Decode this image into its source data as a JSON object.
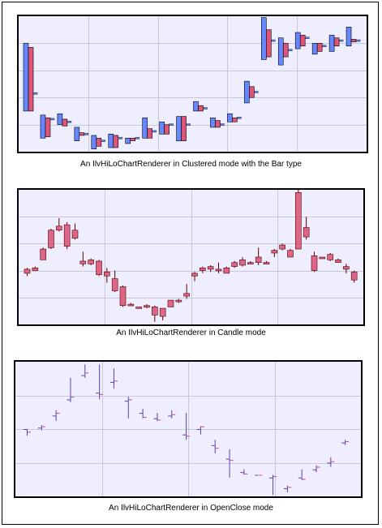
{
  "chart_data": [
    {
      "type": "hilo-clustered-bar",
      "caption": "An IlvHiLoChartRenderer in Clustered mode with the Bar type",
      "ylim": [
        0,
        10
      ],
      "grid": true,
      "colors": {
        "blue": "#6688ff",
        "red": "#dd5577"
      },
      "clusters": [
        {
          "x": 1,
          "blue": [
            3,
            8
          ],
          "red": [
            3,
            7.7
          ],
          "hilo": [
            4.3,
            4.3
          ]
        },
        {
          "x": 2,
          "blue": [
            1,
            2.7
          ],
          "red": [
            1.1,
            2.5
          ],
          "hilo": [
            2.4,
            2.5
          ]
        },
        {
          "x": 3,
          "blue": [
            2,
            2.8
          ],
          "red": [
            1.9,
            2.4
          ],
          "hilo": [
            2.2,
            2.4
          ]
        },
        {
          "x": 4,
          "blue": [
            0.8,
            1.8
          ],
          "red": [
            1.2,
            1.4
          ],
          "hilo": [
            1.3,
            1.3
          ]
        },
        {
          "x": 5,
          "blue": [
            0.2,
            1.2
          ],
          "red": [
            0.4,
            1.0
          ],
          "hilo": [
            0.8,
            0.8
          ]
        },
        {
          "x": 6,
          "blue": [
            0.3,
            1.3
          ],
          "red": [
            0.3,
            1.2
          ],
          "hilo": [
            1.0,
            1.0
          ]
        },
        {
          "x": 7,
          "blue": [
            0.6,
            1.0
          ],
          "red": [
            0.8,
            1.0
          ],
          "hilo": [
            1.0,
            1.0
          ]
        },
        {
          "x": 8,
          "blue": [
            1.0,
            2.5
          ],
          "red": [
            1.0,
            1.7
          ],
          "hilo": [
            1.5,
            1.5
          ]
        },
        {
          "x": 9,
          "blue": [
            1.3,
            2.2
          ],
          "red": [
            1.3,
            2.0
          ],
          "hilo": [
            2.0,
            2.0
          ]
        },
        {
          "x": 10,
          "blue": [
            0.8,
            2.6
          ],
          "red": [
            0.8,
            2.6
          ],
          "hilo": [
            2.0,
            2.0
          ]
        },
        {
          "x": 11,
          "blue": [
            3.0,
            3.7
          ],
          "red": [
            3.0,
            3.4
          ],
          "hilo": [
            3.2,
            3.2
          ]
        },
        {
          "x": 12,
          "blue": [
            1.8,
            2.5
          ],
          "red": [
            1.8,
            2.3
          ],
          "hilo": [
            2.0,
            2.0
          ]
        },
        {
          "x": 13,
          "blue": [
            2.2,
            2.8
          ],
          "red": [
            2.2,
            2.5
          ],
          "hilo": [
            2.5,
            2.5
          ]
        },
        {
          "x": 14,
          "blue": [
            3.6,
            5.2
          ],
          "red": [
            4.0,
            4.8
          ],
          "hilo": [
            4.4,
            4.4
          ]
        },
        {
          "x": 15,
          "blue": [
            6.8,
            9.9
          ],
          "red": [
            7.0,
            9.0
          ],
          "hilo": [
            8.2,
            8.2
          ]
        },
        {
          "x": 16,
          "blue": [
            6.4,
            8.4
          ],
          "red": [
            7.0,
            8.0
          ],
          "hilo": [
            7.5,
            7.5
          ]
        },
        {
          "x": 17,
          "blue": [
            7.6,
            8.8
          ],
          "red": [
            7.8,
            8.6
          ],
          "hilo": [
            8.4,
            8.4
          ]
        },
        {
          "x": 18,
          "blue": [
            7.2,
            8.0
          ],
          "red": [
            7.4,
            8.0
          ],
          "hilo": [
            7.8,
            7.8
          ]
        },
        {
          "x": 19,
          "blue": [
            7.4,
            8.6
          ],
          "red": [
            7.8,
            8.4
          ],
          "hilo": [
            8.2,
            8.2
          ]
        },
        {
          "x": 20,
          "blue": [
            7.8,
            9.2
          ],
          "red": [
            8.1,
            8.3
          ],
          "hilo": [
            8.2,
            8.2
          ]
        }
      ]
    },
    {
      "type": "candle",
      "caption": "An IlvHiLoChartRenderer in Candle mode",
      "ylim": [
        0,
        10
      ],
      "grid": true,
      "colors": {
        "up": "#dd6688",
        "down": "#880000"
      },
      "candles": [
        {
          "x": 1,
          "open": 3.8,
          "close": 4.1,
          "low": 3.6,
          "high": 4.2
        },
        {
          "x": 2,
          "open": 4.0,
          "close": 4.2,
          "low": 4.0,
          "high": 4.3
        },
        {
          "x": 3,
          "open": 4.8,
          "close": 5.6,
          "low": 4.8,
          "high": 5.7
        },
        {
          "x": 4,
          "open": 5.7,
          "close": 7.0,
          "low": 5.6,
          "high": 7.1
        },
        {
          "x": 5,
          "open": 7.0,
          "close": 7.3,
          "low": 6.9,
          "high": 7.9
        },
        {
          "x": 6,
          "open": 5.8,
          "close": 7.4,
          "low": 5.6,
          "high": 7.6
        },
        {
          "x": 7,
          "open": 6.4,
          "close": 7.0,
          "low": 6.3,
          "high": 7.5
        },
        {
          "x": 8,
          "open": 4.5,
          "close": 4.7,
          "low": 4.3,
          "high": 5.4
        },
        {
          "x": 9,
          "open": 4.5,
          "close": 4.8,
          "low": 4.4,
          "high": 4.9
        },
        {
          "x": 10,
          "open": 3.7,
          "close": 4.7,
          "low": 3.6,
          "high": 4.8
        },
        {
          "x": 11,
          "open": 3.6,
          "close": 3.9,
          "low": 3.1,
          "high": 4.2
        },
        {
          "x": 12,
          "open": 2.5,
          "close": 3.4,
          "low": 2.4,
          "high": 4.0
        },
        {
          "x": 13,
          "open": 1.4,
          "close": 2.8,
          "low": 1.3,
          "high": 2.9
        },
        {
          "x": 14,
          "open": 1.4,
          "close": 1.5,
          "low": 1.4,
          "high": 1.6
        },
        {
          "x": 15,
          "open": 1.2,
          "close": 1.3,
          "low": 1.2,
          "high": 1.3
        },
        {
          "x": 16,
          "open": 1.3,
          "close": 1.4,
          "low": 1.2,
          "high": 1.5
        },
        {
          "x": 17,
          "open": 0.7,
          "close": 1.3,
          "low": 0.2,
          "high": 1.4
        },
        {
          "x": 18,
          "open": 0.6,
          "close": 1.2,
          "low": 0.3,
          "high": 1.2
        },
        {
          "x": 19,
          "open": 1.3,
          "close": 1.8,
          "low": 1.3,
          "high": 1.8
        },
        {
          "x": 20,
          "open": 1.7,
          "close": 1.8,
          "low": 1.6,
          "high": 1.9
        },
        {
          "x": 21,
          "open": 2.1,
          "close": 2.3,
          "low": 1.9,
          "high": 3.0
        },
        {
          "x": 22,
          "open": 3.6,
          "close": 3.8,
          "low": 3.2,
          "high": 3.9
        },
        {
          "x": 23,
          "open": 4.0,
          "close": 4.2,
          "low": 3.8,
          "high": 4.3
        },
        {
          "x": 24,
          "open": 4.1,
          "close": 4.3,
          "low": 3.9,
          "high": 4.4
        },
        {
          "x": 25,
          "open": 4.0,
          "close": 4.1,
          "low": 3.8,
          "high": 4.6
        },
        {
          "x": 26,
          "open": 3.8,
          "close": 4.2,
          "low": 3.8,
          "high": 4.3
        },
        {
          "x": 27,
          "open": 4.3,
          "close": 4.6,
          "low": 4.2,
          "high": 4.7
        },
        {
          "x": 28,
          "open": 4.4,
          "close": 4.8,
          "low": 4.3,
          "high": 5.0
        },
        {
          "x": 29,
          "open": 4.5,
          "close": 4.6,
          "low": 4.5,
          "high": 4.7
        },
        {
          "x": 30,
          "open": 4.6,
          "close": 5.0,
          "low": 4.4,
          "high": 5.7
        },
        {
          "x": 31,
          "open": 4.6,
          "close": 4.6,
          "low": 4.5,
          "high": 4.7
        },
        {
          "x": 32,
          "open": 5.3,
          "close": 5.5,
          "low": 5.0,
          "high": 5.6
        },
        {
          "x": 33,
          "open": 5.6,
          "close": 5.9,
          "low": 5.5,
          "high": 6.0
        },
        {
          "x": 34,
          "open": 5.0,
          "close": 5.5,
          "low": 5.0,
          "high": 5.6
        },
        {
          "x": 35,
          "open": 5.6,
          "close": 9.8,
          "low": 5.6,
          "high": 10.0
        },
        {
          "x": 36,
          "open": 6.5,
          "close": 7.2,
          "low": 6.3,
          "high": 8.0
        },
        {
          "x": 37,
          "open": 4.0,
          "close": 5.1,
          "low": 3.9,
          "high": 5.4
        },
        {
          "x": 38,
          "open": 5.0,
          "close": 5.0,
          "low": 4.9,
          "high": 5.0
        },
        {
          "x": 39,
          "open": 4.8,
          "close": 5.2,
          "low": 4.7,
          "high": 5.3
        },
        {
          "x": 40,
          "open": 4.6,
          "close": 4.8,
          "low": 4.6,
          "high": 4.9
        },
        {
          "x": 41,
          "open": 4.1,
          "close": 4.3,
          "low": 3.8,
          "high": 4.5
        },
        {
          "x": 42,
          "open": 3.3,
          "close": 3.9,
          "low": 3.1,
          "high": 4.0
        }
      ]
    },
    {
      "type": "openclose",
      "caption": "An IlvHiLoChartRenderer in OpenClose mode",
      "ylim": [
        0,
        10
      ],
      "grid": true,
      "colors": {
        "open": "#5544aa",
        "close": "#cc4488"
      },
      "sticks": [
        {
          "x": 1,
          "open": 5.0,
          "close": 4.8,
          "low": 4.5,
          "high": 5.0
        },
        {
          "x": 2,
          "open": 5.1,
          "close": 5.2,
          "low": 4.9,
          "high": 5.3
        },
        {
          "x": 3,
          "open": 6.0,
          "close": 6.2,
          "low": 5.6,
          "high": 6.4
        },
        {
          "x": 4,
          "open": 7.2,
          "close": 7.4,
          "low": 7.0,
          "high": 8.8
        },
        {
          "x": 5,
          "open": 9.0,
          "close": 9.2,
          "low": 8.8,
          "high": 9.8
        },
        {
          "x": 6,
          "open": 7.7,
          "close": 7.6,
          "low": 7.2,
          "high": 9.8
        },
        {
          "x": 7,
          "open": 8.5,
          "close": 8.6,
          "low": 8.0,
          "high": 9.5
        },
        {
          "x": 8,
          "open": 7.1,
          "close": 7.2,
          "low": 5.8,
          "high": 7.4
        },
        {
          "x": 9,
          "open": 6.2,
          "close": 5.9,
          "low": 5.8,
          "high": 6.5
        },
        {
          "x": 10,
          "open": 5.8,
          "close": 5.7,
          "low": 5.6,
          "high": 6.2
        },
        {
          "x": 11,
          "open": 6.0,
          "close": 6.1,
          "low": 5.8,
          "high": 6.4
        },
        {
          "x": 12,
          "open": 4.6,
          "close": 4.5,
          "low": 4.2,
          "high": 6.2
        },
        {
          "x": 13,
          "open": 5.0,
          "close": 5.2,
          "low": 4.6,
          "high": 5.2
        },
        {
          "x": 14,
          "open": 3.8,
          "close": 3.6,
          "low": 3.2,
          "high": 4.2
        },
        {
          "x": 15,
          "open": 2.8,
          "close": 2.7,
          "low": 1.4,
          "high": 3.5
        },
        {
          "x": 16,
          "open": 1.8,
          "close": 1.7,
          "low": 1.6,
          "high": 2.0
        },
        {
          "x": 17,
          "open": 1.6,
          "close": 1.6,
          "low": 1.6,
          "high": 1.6
        },
        {
          "x": 18,
          "open": 1.4,
          "close": 1.5,
          "low": 0.1,
          "high": 1.6
        },
        {
          "x": 19,
          "open": 0.6,
          "close": 0.7,
          "low": 0.3,
          "high": 0.8
        },
        {
          "x": 20,
          "open": 1.4,
          "close": 1.3,
          "low": 1.2,
          "high": 2.0
        },
        {
          "x": 21,
          "open": 2.0,
          "close": 2.2,
          "low": 1.8,
          "high": 2.3
        },
        {
          "x": 22,
          "open": 2.5,
          "close": 2.6,
          "low": 2.2,
          "high": 2.9
        },
        {
          "x": 23,
          "open": 4.0,
          "close": 4.1,
          "low": 3.8,
          "high": 4.2
        }
      ]
    }
  ]
}
